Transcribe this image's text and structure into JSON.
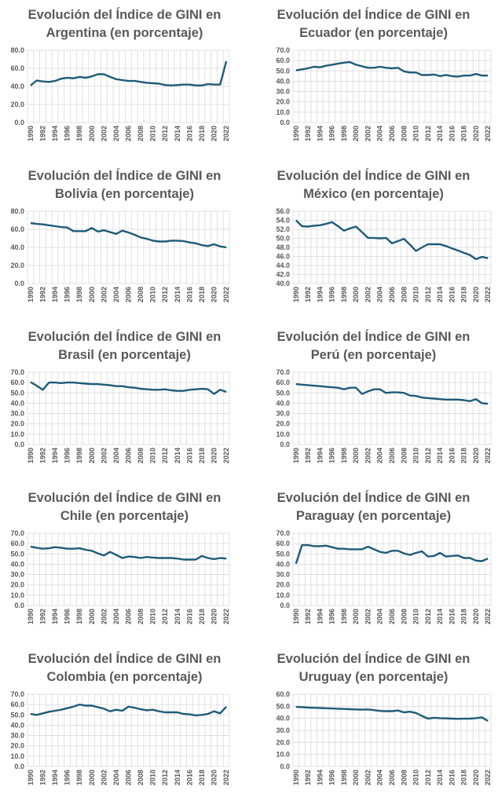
{
  "title_prefix": "Evolución del Índice de GINI en",
  "chart_data": [
    {
      "type": "line",
      "country": "Argentina",
      "subtitle": "Argentina (en porcentaje)",
      "ylim": [
        0,
        80
      ],
      "ystep": 20,
      "x_start": 1990,
      "x_end": 2022,
      "values": [
        41,
        46.5,
        45.5,
        45,
        46,
        48.5,
        49.5,
        49,
        50.5,
        49.5,
        51,
        53.5,
        53.5,
        50.5,
        48,
        47,
        46,
        46,
        45,
        44,
        43.5,
        43,
        41.5,
        41,
        41.5,
        42,
        42,
        41,
        41,
        42.5,
        42,
        42,
        68
      ]
    },
    {
      "type": "line",
      "country": "Ecuador",
      "subtitle": "Ecuador (en porcentaje)",
      "ylim": [
        0,
        70
      ],
      "ystep": 10,
      "x_start": 1990,
      "x_end": 2022,
      "values": [
        50.5,
        51.5,
        52.5,
        54,
        53.5,
        55,
        56,
        57,
        58,
        58.5,
        56,
        54.5,
        53,
        53,
        54,
        53,
        52.5,
        53,
        49.5,
        48.5,
        48.5,
        46,
        46,
        46.5,
        45,
        46,
        45,
        44.5,
        45.5,
        45.5,
        47,
        45.5,
        45.5
      ]
    },
    {
      "type": "line",
      "country": "Bolivia",
      "subtitle": "Bolivia (en porcentaje)",
      "ylim": [
        0,
        80
      ],
      "ystep": 20,
      "x_start": 1990,
      "x_end": 2022,
      "values": [
        67,
        66,
        65.5,
        64.5,
        63.5,
        62.5,
        62,
        58,
        58,
        58,
        61.5,
        57.5,
        59,
        57,
        55,
        58.5,
        56.5,
        54,
        51,
        49.5,
        47.5,
        46.5,
        46.5,
        47.5,
        47.5,
        47,
        45.5,
        44.5,
        42.5,
        41.5,
        43.5,
        41,
        40
      ]
    },
    {
      "type": "line",
      "country": "México",
      "subtitle": "México (en porcentaje)",
      "ylim": [
        40,
        56
      ],
      "ystep": 2,
      "x_start": 1990,
      "x_end": 2022,
      "values": [
        54,
        52.7,
        52.6,
        52.8,
        52.9,
        53.2,
        53.6,
        52.7,
        51.7,
        52.2,
        52.6,
        51.4,
        50.1,
        50.1,
        50,
        50.1,
        48.9,
        49.4,
        49.9,
        48.6,
        47.2,
        48,
        48.7,
        48.7,
        48.7,
        48.3,
        47.8,
        47.3,
        46.8,
        46.3,
        45.4,
        45.9,
        45.6
      ]
    },
    {
      "type": "line",
      "country": "Brasil",
      "subtitle": "Brasil (en porcentaje)",
      "ylim": [
        0,
        70
      ],
      "ystep": 10,
      "x_start": 1990,
      "x_end": 2022,
      "values": [
        60.5,
        57,
        53,
        60,
        60,
        59.5,
        60,
        60,
        59.5,
        59,
        58.5,
        58.5,
        58,
        57.5,
        56.5,
        56.5,
        55.5,
        55,
        54,
        53.5,
        53,
        53,
        53.5,
        52.5,
        52,
        52,
        53,
        53.5,
        54,
        53.5,
        49,
        53,
        51
      ]
    },
    {
      "type": "line",
      "country": "Perú",
      "subtitle": "Perú (en porcentaje)",
      "ylim": [
        0,
        70
      ],
      "ystep": 10,
      "x_start": 1990,
      "x_end": 2022,
      "values": [
        58.5,
        58,
        57.5,
        57,
        56.5,
        56,
        55.5,
        55,
        53.5,
        55,
        55,
        49,
        51.5,
        53.5,
        53.5,
        50,
        50.5,
        50.5,
        50,
        47.5,
        47,
        45.5,
        45,
        44.5,
        44,
        43.5,
        43.5,
        43.5,
        43,
        42,
        44,
        40,
        39.5
      ]
    },
    {
      "type": "line",
      "country": "Chile",
      "subtitle": "Chile (en porcentaje)",
      "ylim": [
        0,
        70
      ],
      "ystep": 10,
      "x_start": 1990,
      "x_end": 2022,
      "values": [
        57,
        56,
        55,
        55.5,
        56.5,
        56,
        55,
        55,
        55.5,
        54,
        53,
        50.5,
        48.5,
        52,
        49,
        46,
        47.5,
        47,
        46,
        47,
        46.5,
        46,
        46,
        46,
        45.5,
        44.5,
        44.5,
        44.5,
        48,
        46,
        45,
        46,
        45.5
      ]
    },
    {
      "type": "line",
      "country": "Paraguay",
      "subtitle": "Paraguay (en porcentaje)",
      "ylim": [
        0,
        70
      ],
      "ystep": 10,
      "x_start": 1990,
      "x_end": 2022,
      "values": [
        40.5,
        58.5,
        58.5,
        57.5,
        57.5,
        58,
        56.5,
        55,
        55,
        54.5,
        54.5,
        54.5,
        57,
        54.5,
        52,
        51,
        53,
        53,
        50.5,
        49,
        51,
        52.5,
        47.5,
        48,
        51,
        47.5,
        48,
        48.5,
        46,
        46,
        43.5,
        43,
        45.5
      ]
    },
    {
      "type": "line",
      "country": "Colombia",
      "subtitle": "Colombia (en porcentaje)",
      "ylim": [
        0,
        70
      ],
      "ystep": 10,
      "x_start": 1990,
      "x_end": 2022,
      "values": [
        51,
        50,
        51.5,
        53,
        54,
        55,
        56.5,
        58,
        60,
        59,
        59,
        57.5,
        56,
        53.5,
        55,
        54,
        58,
        57,
        55.5,
        54.5,
        55,
        53.5,
        52.5,
        52.5,
        52.5,
        51,
        50.5,
        49.5,
        50,
        51,
        53.5,
        51.5,
        58
      ]
    },
    {
      "type": "line",
      "country": "Uruguay",
      "subtitle": "Uruguay (en porcentaje)",
      "ylim": [
        0,
        60
      ],
      "ystep": 10,
      "x_start": 1990,
      "x_end": 2022,
      "values": [
        49.5,
        49.3,
        49,
        48.8,
        48.6,
        48.4,
        48.2,
        48,
        47.8,
        47.6,
        47.4,
        47.2,
        47.4,
        46.8,
        46.2,
        46,
        46,
        46.5,
        45,
        45.5,
        44.5,
        42,
        39.8,
        40.5,
        40.2,
        40,
        39.8,
        39.6,
        39.7,
        39.8,
        40.2,
        40.8,
        37.8
      ]
    }
  ],
  "colors": {
    "line": "#1d5b79",
    "grid": "#d9d9d9",
    "text": "#595959"
  }
}
